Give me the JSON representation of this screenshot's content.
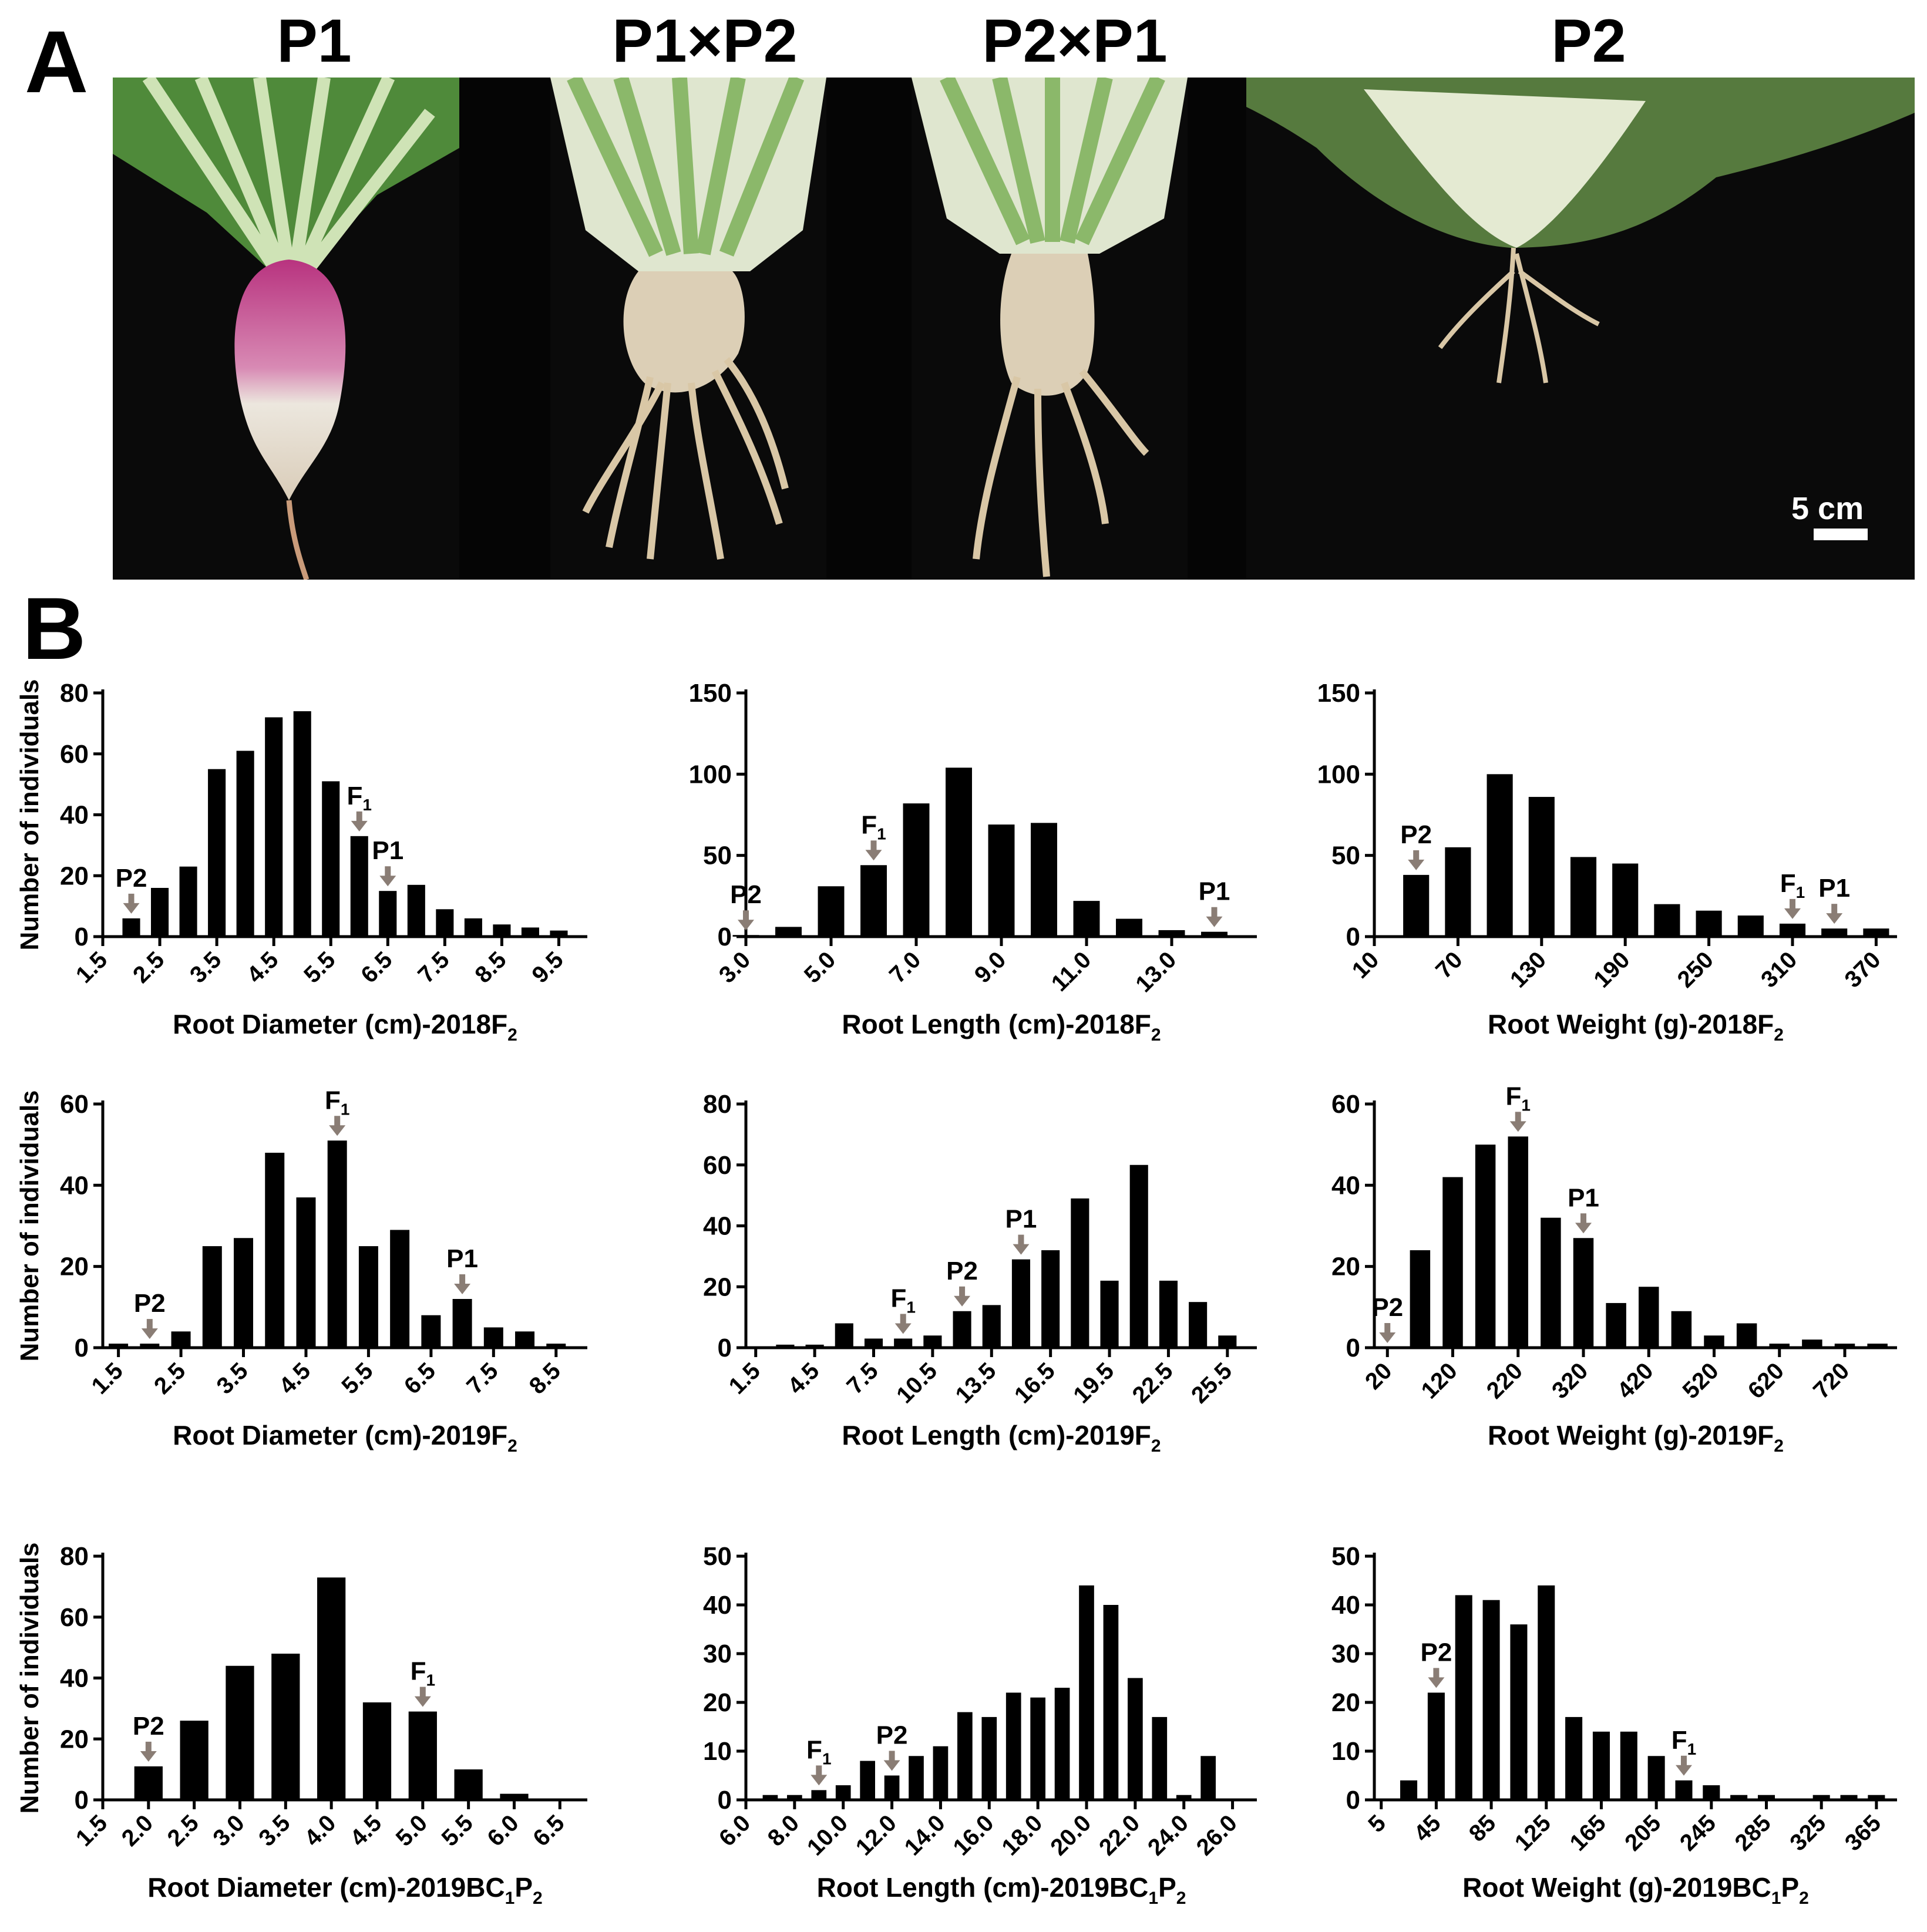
{
  "panel_a": {
    "letter": "A",
    "labels": [
      "P1",
      "P1×P2",
      "P2×P1",
      "P2"
    ],
    "scale_label": "5 cm"
  },
  "panel_b": {
    "letter": "B"
  },
  "annotation_color": "#8a7d75",
  "bar_color": "#000000",
  "chart_data": [
    {
      "type": "bar",
      "xlabel": "Root Diameter (cm)-2018F",
      "xlabel_sub": "2",
      "xlabel_tail": "",
      "ylabel": "Number of individuals",
      "ylim": [
        0,
        80
      ],
      "yticks": [
        0,
        20,
        40,
        60,
        80
      ],
      "xlim": [
        1.5,
        10
      ],
      "xticks": [
        "1.5",
        "2.5",
        "3.5",
        "4.5",
        "5.5",
        "6.5",
        "7.5",
        "8.5",
        "9.5"
      ],
      "tick_values": [
        1.5,
        2.5,
        3.5,
        4.5,
        5.5,
        6.5,
        7.5,
        8.5,
        9.5
      ],
      "bar_x": [
        2,
        2.5,
        3,
        3.5,
        4,
        4.5,
        5,
        5.5,
        6,
        6.5,
        7,
        7.5,
        8,
        8.5,
        9,
        9.5
      ],
      "values": [
        6,
        16,
        23,
        55,
        61,
        72,
        74,
        51,
        33,
        15,
        17,
        9,
        6,
        4,
        3,
        2
      ],
      "markers": [
        {
          "label": "P2",
          "sub": "",
          "x": 2
        },
        {
          "label": "F",
          "sub": "1",
          "x": 6
        },
        {
          "label": "P1",
          "sub": "",
          "x": 6.5
        }
      ]
    },
    {
      "type": "bar",
      "xlabel": "Root Length (cm)-2018F",
      "xlabel_sub": "2",
      "xlabel_tail": "",
      "ylabel": "",
      "ylim": [
        0,
        150
      ],
      "yticks": [
        0,
        50,
        100,
        150
      ],
      "xlim": [
        3,
        15
      ],
      "xticks": [
        "3.0",
        "5.0",
        "7.0",
        "9.0",
        "11.0",
        "13.0"
      ],
      "tick_values": [
        3,
        5,
        7,
        9,
        11,
        13
      ],
      "bar_x": [
        3,
        4,
        5,
        6,
        7,
        8,
        9,
        10,
        11,
        12,
        13,
        14
      ],
      "values": [
        1,
        6,
        31,
        44,
        82,
        104,
        69,
        70,
        22,
        11,
        4,
        3
      ],
      "markers": [
        {
          "label": "P2",
          "sub": "",
          "x": 3
        },
        {
          "label": "F",
          "sub": "1",
          "x": 6
        },
        {
          "label": "P1",
          "sub": "",
          "x": 14
        }
      ]
    },
    {
      "type": "bar",
      "xlabel": "Root Weight (g)-2018F",
      "xlabel_sub": "2",
      "xlabel_tail": "",
      "ylabel": "",
      "ylim": [
        0,
        150
      ],
      "yticks": [
        0,
        50,
        100,
        150
      ],
      "xlim": [
        10,
        385
      ],
      "xticks": [
        "10",
        "70",
        "130",
        "190",
        "250",
        "310",
        "370"
      ],
      "tick_values": [
        10,
        70,
        130,
        190,
        250,
        310,
        370
      ],
      "bar_x": [
        40,
        70,
        100,
        130,
        160,
        190,
        220,
        250,
        280,
        310,
        340,
        370
      ],
      "values": [
        38,
        55,
        100,
        86,
        49,
        45,
        20,
        16,
        13,
        8,
        5,
        5
      ],
      "markers": [
        {
          "label": "P2",
          "sub": "",
          "x": 40
        },
        {
          "label": "F",
          "sub": "1",
          "x": 310
        },
        {
          "label": "P1",
          "sub": "",
          "x": 340
        }
      ]
    },
    {
      "type": "bar",
      "xlabel": "Root Diameter (cm)-2019F",
      "xlabel_sub": "2",
      "xlabel_tail": "",
      "ylabel": "Number of individuals",
      "ylim": [
        0,
        60
      ],
      "yticks": [
        0,
        20,
        40,
        60
      ],
      "xlim": [
        1.25,
        9
      ],
      "xticks": [
        "1.5",
        "2.5",
        "3.5",
        "4.5",
        "5.5",
        "6.5",
        "7.5",
        "8.5"
      ],
      "tick_values": [
        1.5,
        2.5,
        3.5,
        4.5,
        5.5,
        6.5,
        7.5,
        8.5
      ],
      "bar_x": [
        1.5,
        2,
        2.5,
        3,
        3.5,
        4,
        4.5,
        5,
        5.5,
        6,
        6.5,
        7,
        7.5,
        8,
        8.5
      ],
      "values": [
        1,
        1,
        4,
        25,
        27,
        48,
        37,
        51,
        25,
        29,
        8,
        12,
        5,
        4,
        1
      ],
      "markers": [
        {
          "label": "P2",
          "sub": "",
          "x": 2
        },
        {
          "label": "F",
          "sub": "1",
          "x": 5
        },
        {
          "label": "P1",
          "sub": "",
          "x": 7
        }
      ]
    },
    {
      "type": "bar",
      "xlabel": "Root Length (cm)-2019F",
      "xlabel_sub": "2",
      "xlabel_tail": "",
      "ylabel": "",
      "ylim": [
        0,
        80
      ],
      "yticks": [
        0,
        20,
        40,
        60,
        80
      ],
      "xlim": [
        1,
        27
      ],
      "xticks": [
        "1.5",
        "4.5",
        "7.5",
        "10.5",
        "13.5",
        "16.5",
        "19.5",
        "22.5",
        "25.5"
      ],
      "tick_values": [
        1.5,
        4.5,
        7.5,
        10.5,
        13.5,
        16.5,
        19.5,
        22.5,
        25.5
      ],
      "bar_x": [
        3,
        4.5,
        6,
        7.5,
        9,
        10.5,
        12,
        13.5,
        15,
        16.5,
        18,
        19.5,
        21,
        22.5,
        24,
        25.5
      ],
      "values": [
        1,
        1,
        8,
        3,
        3,
        4,
        12,
        14,
        29,
        32,
        49,
        22,
        60,
        22,
        15,
        4
      ],
      "markers": [
        {
          "label": "F",
          "sub": "1",
          "x": 9
        },
        {
          "label": "P2",
          "sub": "",
          "x": 12
        },
        {
          "label": "P1",
          "sub": "",
          "x": 15
        }
      ]
    },
    {
      "type": "bar",
      "xlabel": "Root Weight (g)-2019F",
      "xlabel_sub": "2",
      "xlabel_tail": "",
      "ylabel": "",
      "ylim": [
        0,
        60
      ],
      "yticks": [
        0,
        20,
        40,
        60
      ],
      "xlim": [
        0,
        800
      ],
      "xticks": [
        "20",
        "120",
        "220",
        "320",
        "420",
        "520",
        "620",
        "720"
      ],
      "tick_values": [
        20,
        120,
        220,
        320,
        420,
        520,
        620,
        720
      ],
      "bar_x": [
        70,
        120,
        170,
        220,
        270,
        320,
        370,
        420,
        470,
        520,
        570,
        620,
        670,
        720,
        770
      ],
      "values": [
        24,
        42,
        50,
        52,
        32,
        27,
        11,
        15,
        9,
        3,
        6,
        1,
        2,
        1,
        1
      ],
      "markers": [
        {
          "label": "P2",
          "sub": "",
          "x": 20
        },
        {
          "label": "F",
          "sub": "1",
          "x": 220
        },
        {
          "label": "P1",
          "sub": "",
          "x": 320
        }
      ]
    },
    {
      "type": "bar",
      "xlabel": "Root Diameter (cm)-2019BC",
      "xlabel_sub": "1",
      "xlabel_tail": "P",
      "xlabel_tail_sub": "2",
      "ylabel": "Number of individuals",
      "ylim": [
        0,
        80
      ],
      "yticks": [
        0,
        20,
        40,
        60,
        80
      ],
      "xlim": [
        1.5,
        6.8
      ],
      "xticks": [
        "1.5",
        "2.0",
        "2.5",
        "3.0",
        "3.5",
        "4.0",
        "4.5",
        "5.0",
        "5.5",
        "6.0",
        "6.5"
      ],
      "tick_values": [
        1.5,
        2,
        2.5,
        3,
        3.5,
        4,
        4.5,
        5,
        5.5,
        6,
        6.5
      ],
      "bar_x": [
        2,
        2.5,
        3,
        3.5,
        4,
        4.5,
        5,
        5.5,
        6
      ],
      "values": [
        11,
        26,
        44,
        48,
        73,
        32,
        29,
        10,
        2
      ],
      "markers": [
        {
          "label": "P2",
          "sub": "",
          "x": 2
        },
        {
          "label": "F",
          "sub": "1",
          "x": 5
        }
      ]
    },
    {
      "type": "bar",
      "xlabel": "Root Length (cm)-2019BC",
      "xlabel_sub": "1",
      "xlabel_tail": "P",
      "xlabel_tail_sub": "2",
      "ylabel": "",
      "ylim": [
        0,
        50
      ],
      "yticks": [
        0,
        10,
        20,
        30,
        40,
        50
      ],
      "xlim": [
        6,
        27
      ],
      "xticks": [
        "6.0",
        "8.0",
        "10.0",
        "12.0",
        "14.0",
        "16.0",
        "18.0",
        "20.0",
        "22.0",
        "24.0",
        "26.0"
      ],
      "tick_values": [
        6,
        8,
        10,
        12,
        14,
        16,
        18,
        20,
        22,
        24,
        26
      ],
      "bar_x": [
        7,
        8,
        9,
        10,
        11,
        12,
        13,
        14,
        15,
        16,
        17,
        18,
        19,
        20,
        21,
        22,
        23,
        24,
        25
      ],
      "values": [
        1,
        1,
        2,
        3,
        8,
        5,
        9,
        11,
        18,
        17,
        22,
        21,
        23,
        44,
        40,
        25,
        17,
        1,
        9
      ],
      "markers": [
        {
          "label": "F",
          "sub": "1",
          "x": 9
        },
        {
          "label": "P2",
          "sub": "",
          "x": 12
        }
      ]
    },
    {
      "type": "bar",
      "xlabel": "Root Weight (g)-2019BC",
      "xlabel_sub": "1",
      "xlabel_tail": "P",
      "xlabel_tail_sub": "2",
      "ylabel": "",
      "ylim": [
        0,
        50
      ],
      "yticks": [
        0,
        10,
        20,
        30,
        40,
        50
      ],
      "xlim": [
        0,
        380
      ],
      "xticks": [
        "5",
        "45",
        "85",
        "125",
        "165",
        "205",
        "245",
        "285",
        "325",
        "365"
      ],
      "tick_values": [
        5,
        45,
        85,
        125,
        165,
        205,
        245,
        285,
        325,
        365
      ],
      "bar_x": [
        25,
        45,
        65,
        85,
        105,
        125,
        145,
        165,
        185,
        205,
        225,
        245,
        265,
        285,
        305,
        325,
        345,
        365
      ],
      "values": [
        4,
        22,
        42,
        41,
        36,
        44,
        17,
        14,
        14,
        9,
        4,
        3,
        1,
        1,
        0,
        1,
        1,
        1
      ],
      "markers": [
        {
          "label": "P2",
          "sub": "",
          "x": 45
        },
        {
          "label": "F",
          "sub": "1",
          "x": 225
        }
      ]
    }
  ]
}
